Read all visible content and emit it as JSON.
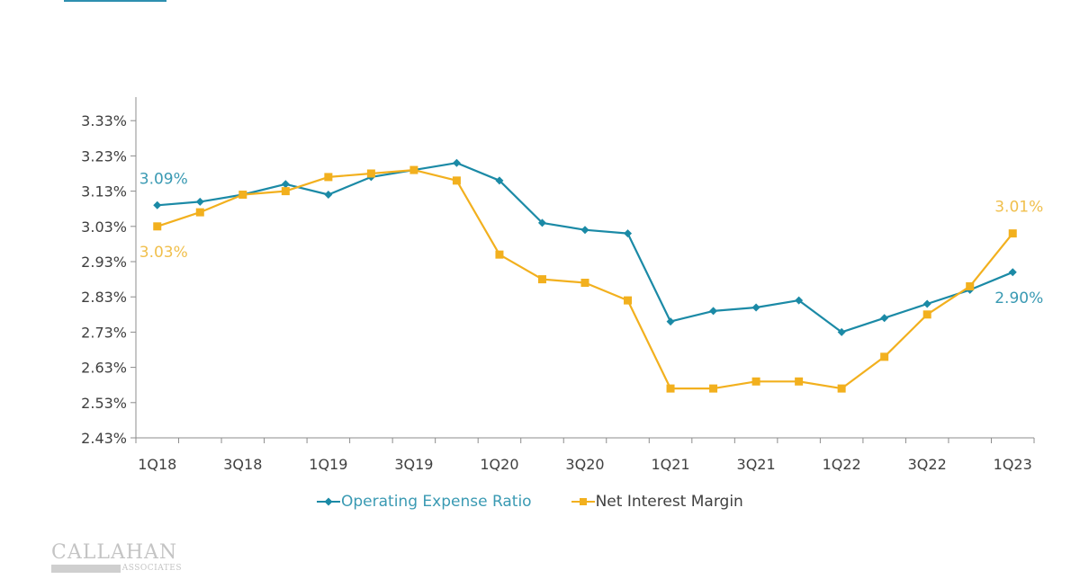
{
  "colors": {
    "operating_expense_ratio": "#1b8aa6",
    "net_interest_margin": "#f2b01e",
    "axis": "#8c8c8c",
    "text": "#404040",
    "logo": "#c4c4c4"
  },
  "legend": {
    "items": [
      {
        "label": "Operating Expense Ratio",
        "marker": "diamond"
      },
      {
        "label": "Net Interest Margin",
        "marker": "square"
      }
    ]
  },
  "logo": {
    "name": "CALLAHAN",
    "sub": "ASSOCIATES"
  },
  "chart_data": {
    "type": "line",
    "title": "",
    "xlabel": "",
    "ylabel": "",
    "x": [
      "1Q18",
      "2Q18",
      "3Q18",
      "4Q18",
      "1Q19",
      "2Q19",
      "3Q19",
      "4Q19",
      "1Q20",
      "2Q20",
      "3Q20",
      "4Q20",
      "1Q21",
      "2Q21",
      "3Q21",
      "4Q21",
      "1Q22",
      "2Q22",
      "3Q22",
      "4Q22",
      "1Q23"
    ],
    "x_tick_labels": [
      "1Q18",
      "3Q18",
      "1Q19",
      "3Q19",
      "1Q20",
      "3Q20",
      "1Q21",
      "3Q21",
      "1Q22",
      "3Q22",
      "1Q23"
    ],
    "y_tick_labels": [
      "2.43%",
      "2.53%",
      "2.63%",
      "2.73%",
      "2.83%",
      "2.93%",
      "3.03%",
      "3.13%",
      "3.23%",
      "3.33%"
    ],
    "ylim": [
      2.43,
      3.38
    ],
    "y_ticks": [
      2.43,
      2.53,
      2.63,
      2.73,
      2.83,
      2.93,
      3.03,
      3.13,
      3.23,
      3.33
    ],
    "grid": false,
    "legend_position": "bottom",
    "series": [
      {
        "name": "Operating Expense Ratio",
        "marker": "diamond",
        "values": [
          3.09,
          3.1,
          3.12,
          3.15,
          3.12,
          3.17,
          3.19,
          3.21,
          3.16,
          3.04,
          3.02,
          3.01,
          2.76,
          2.79,
          2.8,
          2.82,
          2.73,
          2.77,
          2.81,
          2.85,
          2.9
        ]
      },
      {
        "name": "Net Interest Margin",
        "marker": "square",
        "values": [
          3.03,
          3.07,
          3.12,
          3.13,
          3.17,
          3.18,
          3.19,
          3.16,
          2.95,
          2.88,
          2.87,
          2.82,
          2.57,
          2.57,
          2.59,
          2.59,
          2.57,
          2.66,
          2.78,
          2.86,
          3.01
        ]
      }
    ],
    "annotations": [
      {
        "series": "Operating Expense Ratio",
        "point": "1Q18",
        "text": "3.09%",
        "placement": "above"
      },
      {
        "series": "Net Interest Margin",
        "point": "1Q18",
        "text": "3.03%",
        "placement": "below"
      },
      {
        "series": "Net Interest Margin",
        "point": "1Q23",
        "text": "3.01%",
        "placement": "above"
      },
      {
        "series": "Operating Expense Ratio",
        "point": "1Q23",
        "text": "2.90%",
        "placement": "below"
      }
    ]
  }
}
